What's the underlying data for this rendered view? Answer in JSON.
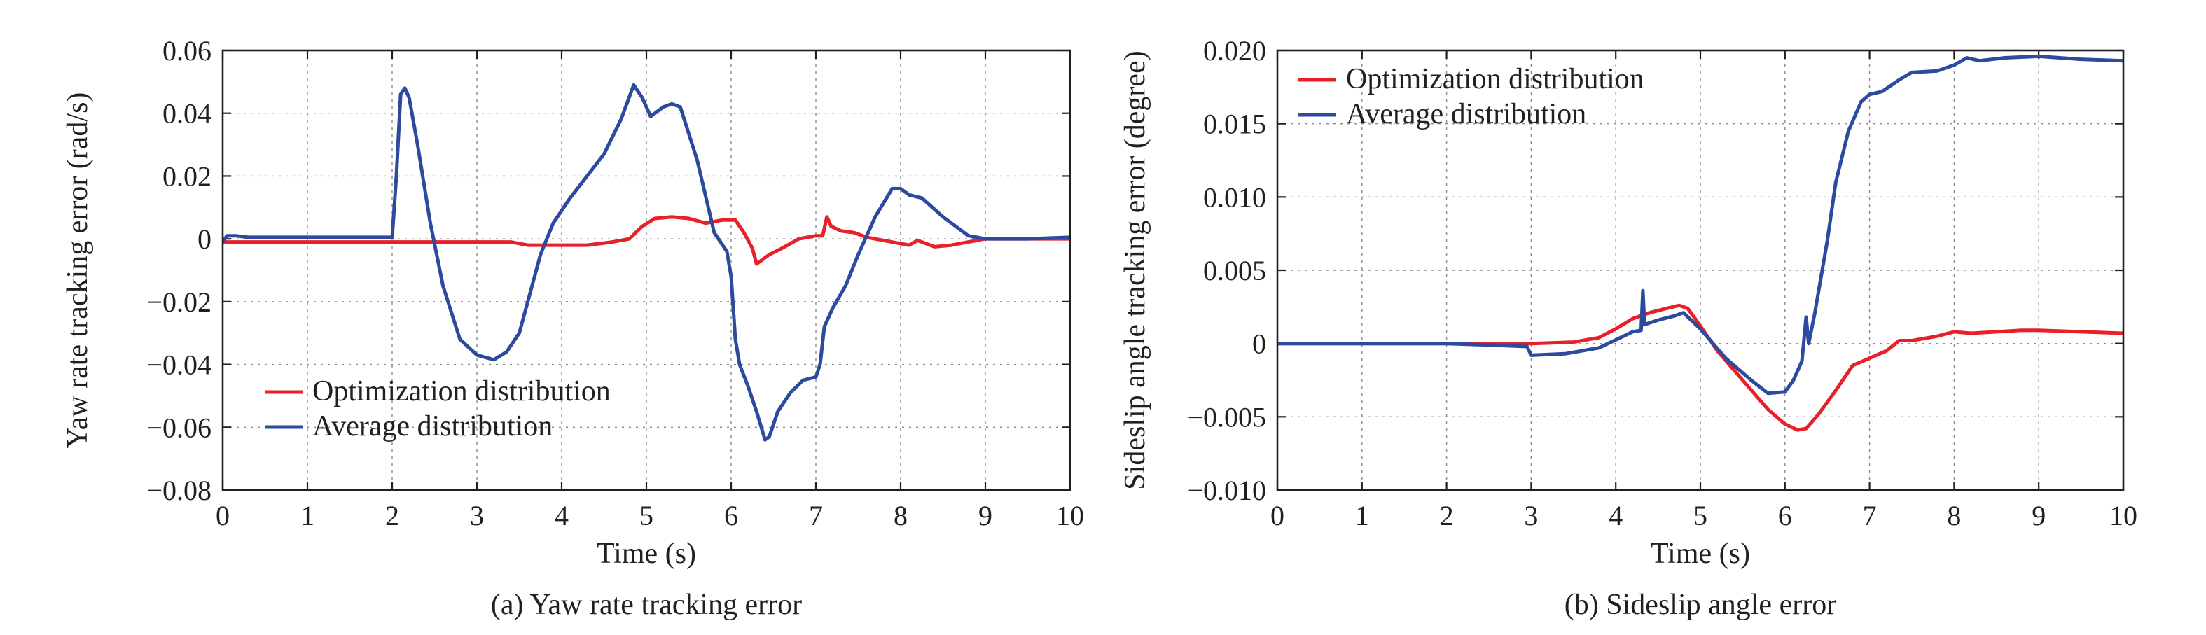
{
  "chart_data": [
    {
      "type": "line",
      "title": "",
      "caption": "(a) Yaw rate tracking error",
      "xlabel": "Time (s)",
      "ylabel": "Yaw rate tracking error (rad/s)",
      "xlim": [
        0,
        10
      ],
      "ylim": [
        -0.08,
        0.06
      ],
      "xticks": [
        0,
        1,
        2,
        3,
        4,
        5,
        6,
        7,
        8,
        9,
        10
      ],
      "yticks": [
        -0.08,
        -0.06,
        -0.04,
        -0.02,
        0,
        0.02,
        0.04,
        0.06
      ],
      "xtick_labels": [
        "0",
        "1",
        "2",
        "3",
        "4",
        "5",
        "6",
        "7",
        "8",
        "9",
        "10"
      ],
      "ytick_labels": [
        "−0.08",
        "−0.06",
        "−0.04",
        "−0.02",
        "0",
        "0.02",
        "0.04",
        "0.06"
      ],
      "grid": true,
      "legend_position": "bottom-left",
      "series": [
        {
          "name": "Optimization distribution",
          "color": "#e8202a",
          "x": [
            0,
            0.5,
            1,
            1.5,
            2,
            2.5,
            3,
            3.4,
            3.6,
            3.8,
            4,
            4.3,
            4.6,
            4.8,
            4.95,
            5.1,
            5.3,
            5.5,
            5.7,
            5.9,
            6.05,
            6.15,
            6.25,
            6.3,
            6.45,
            6.6,
            6.8,
            7.0,
            7.08,
            7.13,
            7.18,
            7.3,
            7.45,
            7.6,
            7.8,
            8.0,
            8.1,
            8.2,
            8.4,
            8.6,
            8.8,
            9.0,
            9.5,
            10
          ],
          "y": [
            -0.001,
            -0.001,
            -0.001,
            -0.001,
            -0.001,
            -0.001,
            -0.001,
            -0.001,
            -0.002,
            -0.002,
            -0.002,
            -0.002,
            -0.001,
            0.0,
            0.004,
            0.0065,
            0.007,
            0.0065,
            0.005,
            0.006,
            0.006,
            0.002,
            -0.003,
            -0.008,
            -0.005,
            -0.003,
            0.0,
            0.001,
            0.001,
            0.007,
            0.004,
            0.0025,
            0.002,
            0.0005,
            -0.0005,
            -0.0015,
            -0.002,
            -0.0005,
            -0.0025,
            -0.002,
            -0.001,
            0.0,
            0.0,
            0.0
          ]
        },
        {
          "name": "Average distribution",
          "color": "#2c4a9e",
          "x": [
            0,
            0.05,
            0.15,
            0.3,
            1.0,
            2.0,
            2.05,
            2.1,
            2.15,
            2.2,
            2.3,
            2.45,
            2.6,
            2.8,
            3.0,
            3.2,
            3.35,
            3.5,
            3.6,
            3.75,
            3.9,
            4.1,
            4.3,
            4.5,
            4.7,
            4.85,
            4.95,
            5.05,
            5.2,
            5.3,
            5.4,
            5.6,
            5.8,
            5.95,
            6.0,
            6.05,
            6.1,
            6.2,
            6.3,
            6.4,
            6.45,
            6.55,
            6.7,
            6.85,
            7.0,
            7.05,
            7.1,
            7.2,
            7.35,
            7.5,
            7.7,
            7.9,
            8.0,
            8.1,
            8.25,
            8.5,
            8.8,
            9.0,
            9.5,
            10
          ],
          "y": [
            -0.001,
            0.001,
            0.001,
            0.0005,
            0.0005,
            0.0005,
            0.02,
            0.046,
            0.048,
            0.045,
            0.03,
            0.005,
            -0.015,
            -0.032,
            -0.037,
            -0.0385,
            -0.036,
            -0.03,
            -0.02,
            -0.005,
            0.005,
            0.013,
            0.02,
            0.027,
            0.038,
            0.049,
            0.045,
            0.039,
            0.042,
            0.043,
            0.042,
            0.025,
            0.002,
            -0.004,
            -0.012,
            -0.032,
            -0.04,
            -0.047,
            -0.055,
            -0.064,
            -0.063,
            -0.055,
            -0.049,
            -0.045,
            -0.044,
            -0.04,
            -0.028,
            -0.022,
            -0.015,
            -0.005,
            0.007,
            0.016,
            0.016,
            0.014,
            0.013,
            0.007,
            0.001,
            0.0,
            0.0,
            0.0005
          ]
        }
      ]
    },
    {
      "type": "line",
      "title": "",
      "caption": "(b) Sideslip angle error",
      "xlabel": "Time (s)",
      "ylabel": "Sideslip angle tracking error (degree)",
      "xlim": [
        0,
        10
      ],
      "ylim": [
        -0.01,
        0.02
      ],
      "xticks": [
        0,
        1,
        2,
        3,
        4,
        5,
        6,
        7,
        8,
        9,
        10
      ],
      "yticks": [
        -0.01,
        -0.005,
        0,
        0.005,
        0.01,
        0.015,
        0.02
      ],
      "xtick_labels": [
        "0",
        "1",
        "2",
        "3",
        "4",
        "5",
        "6",
        "7",
        "8",
        "9",
        "10"
      ],
      "ytick_labels": [
        "−0.010",
        "−0.005",
        "0",
        "0.005",
        "0.010",
        "0.015",
        "0.020"
      ],
      "grid": true,
      "legend_position": "top-left",
      "series": [
        {
          "name": "Optimization distribution",
          "color": "#e8202a",
          "x": [
            0,
            1,
            2,
            2.5,
            3,
            3.5,
            3.8,
            4.0,
            4.2,
            4.4,
            4.6,
            4.75,
            4.85,
            5.0,
            5.2,
            5.5,
            5.8,
            6.0,
            6.15,
            6.25,
            6.4,
            6.6,
            6.8,
            7.0,
            7.2,
            7.35,
            7.5,
            7.8,
            8.0,
            8.2,
            8.5,
            8.8,
            9.0,
            9.5,
            10
          ],
          "y": [
            0,
            0,
            0,
            0,
            0,
            0.0001,
            0.0004,
            0.001,
            0.0017,
            0.0021,
            0.0024,
            0.0026,
            0.0024,
            0.0012,
            -0.0005,
            -0.0025,
            -0.0045,
            -0.0055,
            -0.0059,
            -0.0058,
            -0.0048,
            -0.0032,
            -0.0015,
            -0.001,
            -0.0005,
            0.0002,
            0.0002,
            0.0005,
            0.0008,
            0.0007,
            0.0008,
            0.0009,
            0.0009,
            0.0008,
            0.0007
          ]
        },
        {
          "name": "Average distribution",
          "color": "#2c4a9e",
          "x": [
            0,
            1,
            2,
            2.5,
            2.95,
            3.0,
            3.4,
            3.8,
            4.2,
            4.3,
            4.32,
            4.34,
            4.5,
            4.7,
            4.8,
            5.0,
            5.3,
            5.6,
            5.8,
            6.0,
            6.1,
            6.2,
            6.22,
            6.25,
            6.28,
            6.35,
            6.5,
            6.6,
            6.75,
            6.9,
            7.0,
            7.15,
            7.35,
            7.5,
            7.8,
            8.0,
            8.15,
            8.3,
            8.6,
            9.0,
            9.5,
            10
          ],
          "y": [
            0,
            0,
            0,
            -0.0001,
            -0.0002,
            -0.0008,
            -0.0007,
            -0.0003,
            0.0008,
            0.0009,
            0.0036,
            0.0013,
            0.0016,
            0.0019,
            0.0021,
            0.001,
            -0.001,
            -0.0025,
            -0.0034,
            -0.0033,
            -0.0025,
            -0.0012,
            0.0,
            0.0018,
            0.0,
            0.002,
            0.007,
            0.011,
            0.0145,
            0.0165,
            0.017,
            0.0172,
            0.018,
            0.0185,
            0.0186,
            0.019,
            0.0195,
            0.0193,
            0.0195,
            0.0196,
            0.0194,
            0.0193
          ]
        }
      ]
    }
  ]
}
